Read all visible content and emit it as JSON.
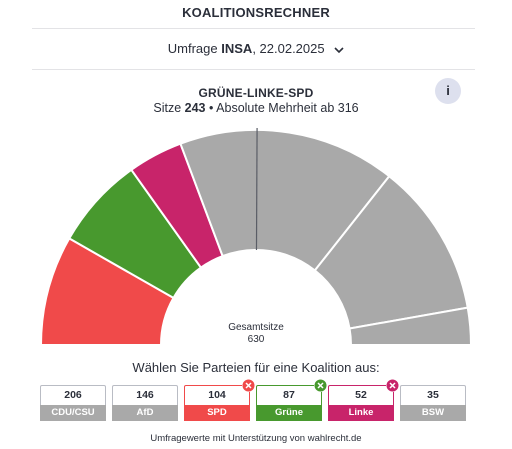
{
  "header": {
    "title": "KOALITIONSRECHNER"
  },
  "poll": {
    "prefix": "Umfrage",
    "institute": "INSA",
    "date": ", 22.02.2025"
  },
  "coalition": {
    "name": "GRÜNE-LINKE-SPD",
    "seats_prefix": "Sitze",
    "seats": "243",
    "majority_text": "• Absolute Mehrheit ab 316"
  },
  "info_button": {
    "label": "i"
  },
  "chart_data": {
    "type": "parliament-semicircle",
    "total_label": "Gesamtsitze",
    "total": "630",
    "majority_line": 316,
    "segments": [
      {
        "party": "SPD",
        "seats": 104,
        "color": "#f04a4a",
        "selected": true
      },
      {
        "party": "Grüne",
        "seats": 87,
        "color": "#48992e",
        "selected": true
      },
      {
        "party": "Linke",
        "seats": 52,
        "color": "#c8246a",
        "selected": true
      },
      {
        "party": "CDU/CSU",
        "seats": 206,
        "color": "#a9a9a9",
        "selected": false
      },
      {
        "party": "AfD",
        "seats": 146,
        "color": "#a9a9a9",
        "selected": false
      },
      {
        "party": "BSW",
        "seats": 35,
        "color": "#a9a9a9",
        "selected": false
      }
    ]
  },
  "selector": {
    "prompt": "Wählen Sie Parteien für eine Koalition aus:",
    "parties": [
      {
        "seats": "206",
        "name": "CDU/CSU",
        "color": "#a9a9a9",
        "selected": false
      },
      {
        "seats": "146",
        "name": "AfD",
        "color": "#a9a9a9",
        "selected": false
      },
      {
        "seats": "104",
        "name": "SPD",
        "color": "#f04a4a",
        "selected": true
      },
      {
        "seats": "87",
        "name": "Grüne",
        "color": "#48992e",
        "selected": true
      },
      {
        "seats": "52",
        "name": "Linke",
        "color": "#c8246a",
        "selected": true
      },
      {
        "seats": "35",
        "name": "BSW",
        "color": "#a9a9a9",
        "selected": false
      }
    ]
  },
  "footer": {
    "note": "Umfragewerte mit Unterstützung von wahlrecht.de"
  },
  "icons": {
    "chevron": "chevron-down-icon",
    "remove": "remove-x-icon"
  }
}
